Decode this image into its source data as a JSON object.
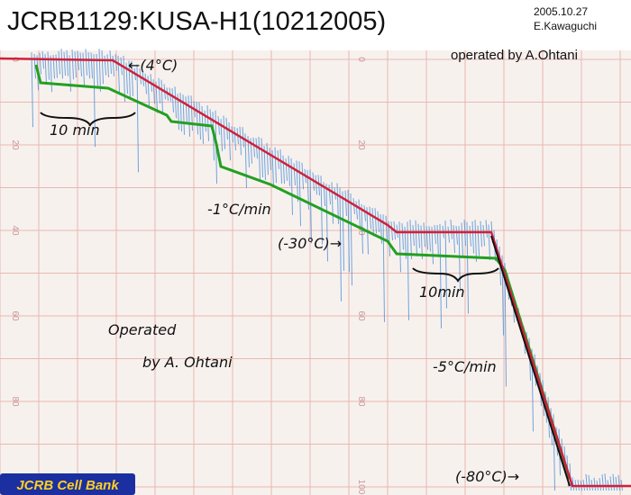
{
  "header": {
    "title": "JCRB1129:KUSA-H1(10212005)",
    "date": "2005.10.27",
    "author": "E.Kawaguchi",
    "operator": "operated by A.Ohtani"
  },
  "scale_labels": [
    "0",
    "20",
    "40",
    "60",
    "80",
    "100"
  ],
  "annotations": {
    "start_temp": "←(4°C)",
    "hold_1": "10 min",
    "rate_1": "-1°C/min",
    "hold_temp": "(-30°C)→",
    "hold_2": "10min",
    "operated": "Operated",
    "operated_by": "by A. Ohtani",
    "rate_2": "-5°C/min",
    "end_temp": "(-80°C)→"
  },
  "logo": "JCRB Cell Bank"
}
